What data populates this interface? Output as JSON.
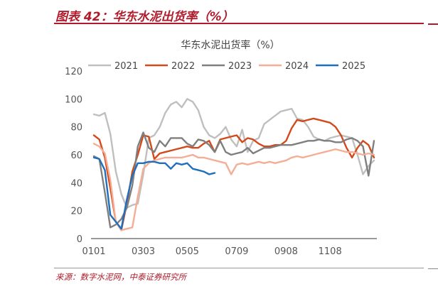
{
  "header": {
    "figure_title": "图表 42：华东水泥出货率（%）"
  },
  "source": "来源：数字水泥网，中泰证券研究所",
  "colors": {
    "accent": "#b01c2b",
    "2021": "#bfbfbf",
    "2022": "#d24a1c",
    "2023": "#7f7f7f",
    "2024": "#f4ae95",
    "2025": "#1f6fbd"
  },
  "chart_data": {
    "type": "line",
    "title": "华东水泥出货率（%）",
    "xlabel": "",
    "ylabel": "",
    "ylim": [
      0,
      120
    ],
    "yticks": [
      0,
      20,
      40,
      60,
      80,
      100,
      120
    ],
    "x_tick_labels": [
      "0101",
      "0303",
      "0505",
      "0709",
      "0908",
      "1108"
    ],
    "x_tick_positions": [
      0,
      9,
      17,
      26,
      35,
      43
    ],
    "x_count": 52,
    "grid": false,
    "legend_position": "top",
    "series": [
      {
        "name": "2021",
        "values": [
          89,
          88,
          90,
          75,
          48,
          32,
          22,
          24,
          25,
          46,
          72,
          74,
          80,
          90,
          96,
          98,
          94,
          100,
          98,
          92,
          80,
          74,
          72,
          75,
          80,
          71,
          66,
          78,
          62,
          70,
          72,
          82,
          85,
          88,
          91,
          92,
          93,
          86,
          85,
          80,
          73,
          71,
          70,
          72,
          73,
          74,
          73,
          72,
          60,
          46,
          52,
          56
        ]
      },
      {
        "name": "2022",
        "values": [
          74,
          71,
          58,
          36,
          12,
          6,
          25,
          48,
          60,
          74,
          73,
          57,
          61,
          62,
          63,
          64,
          65,
          66,
          65,
          65,
          68,
          70,
          62,
          71,
          72,
          73,
          74,
          69,
          72,
          71,
          68,
          66,
          66,
          67,
          67,
          70,
          79,
          85,
          84,
          85,
          86,
          85,
          84,
          83,
          80,
          74,
          65,
          58,
          65,
          70,
          67,
          58
        ]
      },
      {
        "name": "2023",
        "values": [
          59,
          57,
          33,
          8,
          10,
          14,
          22,
          38,
          66,
          76,
          65,
          62,
          70,
          66,
          72,
          72,
          72,
          68,
          66,
          71,
          70,
          67,
          62,
          70,
          62,
          60,
          61,
          62,
          65,
          61,
          63,
          65,
          65,
          66,
          67,
          67,
          67,
          68,
          69,
          70,
          70,
          71,
          70,
          70,
          69,
          69,
          71,
          72,
          70,
          66,
          45,
          70
        ]
      },
      {
        "name": "2024",
        "values": [
          68,
          66,
          61,
          42,
          12,
          6,
          7,
          8,
          30,
          50,
          54,
          56,
          57,
          58,
          58,
          58,
          58,
          59,
          60,
          58,
          58,
          57,
          56,
          55,
          54,
          46,
          53,
          54,
          53,
          54,
          55,
          54,
          55,
          54,
          55,
          56,
          58,
          59,
          58,
          59,
          60,
          61,
          62,
          63,
          64,
          63,
          62,
          62,
          61,
          60,
          61,
          60
        ]
      },
      {
        "name": "2025",
        "values": [
          58,
          57,
          49,
          17,
          12,
          7,
          28,
          45,
          54,
          54,
          55,
          55,
          54,
          54,
          50,
          54,
          53,
          54,
          50,
          49,
          48,
          46,
          47
        ]
      }
    ]
  }
}
